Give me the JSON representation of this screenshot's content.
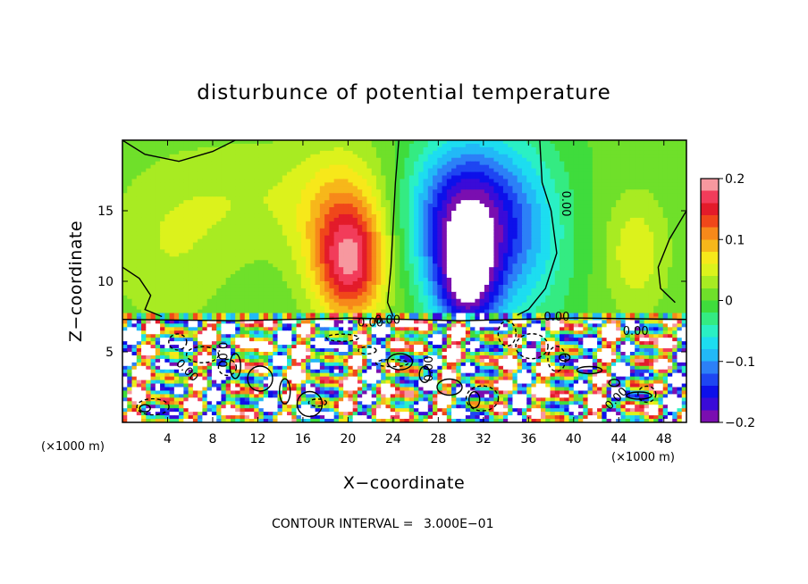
{
  "chart_data": {
    "type": "heatmap",
    "title": "disturbunce of potential temperature",
    "xlabel": "X−coordinate",
    "ylabel": "Z−coordinate",
    "x_unit": "(×1000 m)",
    "y_unit": "(×1000 m)",
    "xlim": [
      0,
      50
    ],
    "ylim": [
      0,
      20
    ],
    "x_ticks": [
      "4",
      "8",
      "12",
      "16",
      "20",
      "24",
      "28",
      "32",
      "36",
      "40",
      "44",
      "48"
    ],
    "x_tick_values": [
      4,
      8,
      12,
      16,
      20,
      24,
      28,
      32,
      36,
      40,
      44,
      48
    ],
    "y_ticks": [
      "5",
      "10",
      "15"
    ],
    "y_tick_values": [
      5,
      10,
      15
    ],
    "colorbar": {
      "range": [
        -0.2,
        0.2
      ],
      "labels": [
        "0.2",
        "0.1",
        "0",
        "−0.1",
        "−0.2"
      ],
      "label_values": [
        0.2,
        0.1,
        0,
        -0.1,
        -0.2
      ],
      "colors": [
        "#7a0eb0",
        "#3a0bd8",
        "#0d10ea",
        "#1e46f2",
        "#2c80f7",
        "#22b9f7",
        "#1dddf0",
        "#2af0c4",
        "#34eb82",
        "#3fdc3c",
        "#6fe02a",
        "#a8eb22",
        "#dcf21c",
        "#f7e81a",
        "#f7b71a",
        "#f7891a",
        "#f0471a",
        "#e31b2a",
        "#f23c5a",
        "#f7989f"
      ]
    },
    "contour_interval": "3.000E−01",
    "contour_labels": [
      "0.00",
      "0.00",
      "0.00",
      "0.00",
      "0.00",
      "0.00",
      "0.00",
      "0.00",
      "0.00"
    ],
    "anomalies": [
      {
        "x": 30.5,
        "z": 14.5,
        "sx": 3.4,
        "sz": 3.8,
        "value": -0.2
      },
      {
        "x": 30.5,
        "z": 9.5,
        "sx": 2.0,
        "sz": 2.6,
        "value": -0.15
      },
      {
        "x": 20.2,
        "z": 11.0,
        "sx": 2.2,
        "sz": 2.8,
        "value": 0.14
      },
      {
        "x": 19.5,
        "z": 14.5,
        "sx": 2.8,
        "sz": 3.5,
        "value": 0.07
      },
      {
        "x": 45.5,
        "z": 12.0,
        "sx": 2.0,
        "sz": 3.0,
        "value": 0.05
      },
      {
        "x": 12.0,
        "z": 16.0,
        "sx": 6.0,
        "sz": 3.0,
        "value": 0.03
      },
      {
        "x": 4.0,
        "z": 12.0,
        "sx": 4.0,
        "sz": 4.0,
        "value": 0.03
      },
      {
        "x": 36.0,
        "z": 13.0,
        "sx": 3.0,
        "sz": 5.0,
        "value": -0.06
      }
    ],
    "grid": false,
    "legend_placement": "right colorbar"
  }
}
